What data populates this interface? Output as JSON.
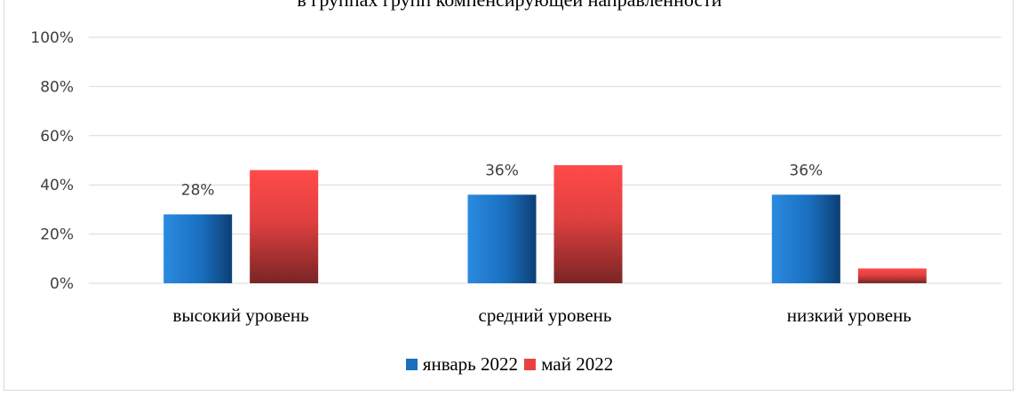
{
  "chart_data": {
    "type": "bar",
    "title": "в группах  групп компенсирующей направленности",
    "categories": [
      "высокий уровень",
      "средний уровень",
      "низкий уровень"
    ],
    "series": [
      {
        "name": "январь 2022",
        "values": [
          28,
          36,
          36
        ],
        "color": "#1a6fbf",
        "labels": [
          "28%",
          "36%",
          "36%"
        ]
      },
      {
        "name": "май 2022",
        "values": [
          46,
          48,
          6
        ],
        "color": "#e84040",
        "labels": [
          "",
          "",
          ""
        ]
      }
    ],
    "y_ticks": [
      "0%",
      "20%",
      "40%",
      "60%",
      "80%",
      "100%"
    ],
    "ylim": [
      0,
      100
    ],
    "grid": true,
    "legend_position": "bottom"
  }
}
